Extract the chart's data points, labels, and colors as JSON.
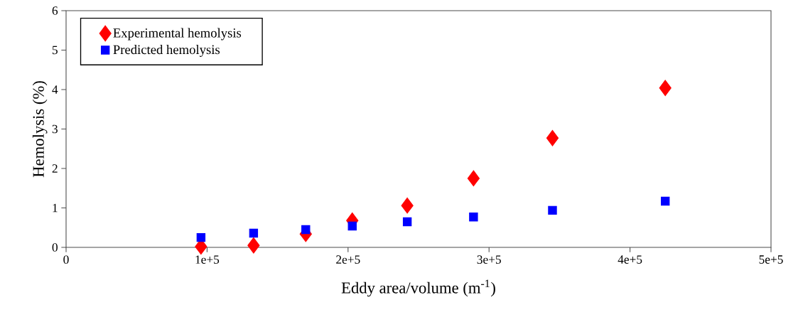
{
  "chart_data": {
    "type": "scatter",
    "xlabel": "Eddy area/volume (m$^{-1}$)",
    "ylabel": "Hemolysis (%)",
    "x": [
      95700,
      133000,
      170000,
      203000,
      242000,
      289000,
      345000,
      425000
    ],
    "series": [
      {
        "name": "Experimental hemolysis",
        "color": "#ff0000",
        "marker": "diamond",
        "values": [
          0.02,
          0.05,
          0.34,
          0.68,
          1.06,
          1.75,
          2.77,
          4.04
        ]
      },
      {
        "name": "Predicted hemolysis",
        "color": "#0000ff",
        "marker": "square",
        "values": [
          0.25,
          0.36,
          0.45,
          0.54,
          0.65,
          0.77,
          0.94,
          1.17
        ]
      }
    ],
    "xlim": [
      0,
      500000
    ],
    "ylim": [
      0,
      6
    ],
    "xticks": [
      0,
      {
        "value": 100000,
        "label": "1e+5"
      },
      {
        "value": 200000,
        "label": "2e+5"
      },
      {
        "value": 300000,
        "label": "3e+5"
      },
      {
        "value": 400000,
        "label": "4e+5"
      },
      {
        "value": 500000,
        "label": "5e+5"
      }
    ],
    "yticks": [
      0,
      1,
      2,
      3,
      4,
      5,
      6
    ],
    "grid": false,
    "legend": "top left"
  }
}
